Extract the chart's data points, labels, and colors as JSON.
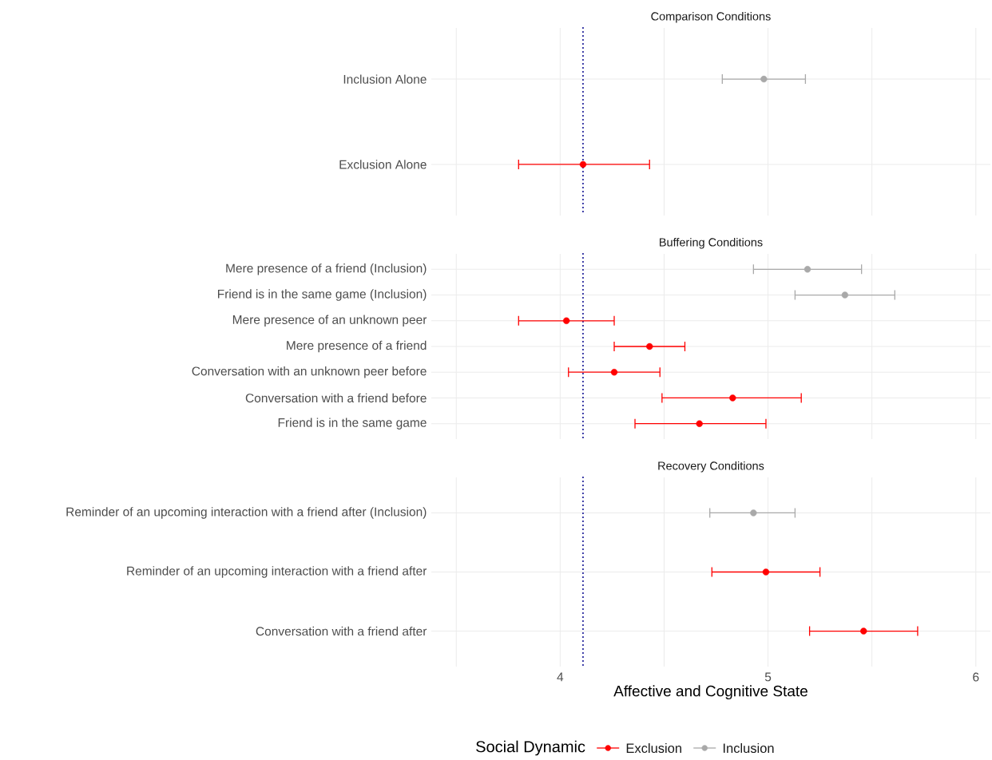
{
  "chart_data": [
    {
      "type": "scatter",
      "title": "Comparison Conditions",
      "orientation": "horizontal",
      "marker": "circle",
      "grid": true,
      "tick_labels": "y",
      "categories": [
        "Inclusion Alone",
        "Exclusion Alone"
      ],
      "xlim": [
        3.38,
        6.07
      ],
      "xticks": [
        {
          "value": 3.5,
          "label": null
        },
        {
          "value": 4,
          "label": null
        },
        {
          "value": 4.5,
          "label": null
        },
        {
          "value": 5,
          "label": null
        },
        {
          "value": 5.5,
          "label": null
        },
        {
          "value": 6,
          "label": null
        }
      ],
      "series": [
        {
          "color": "#ff0000",
          "values": [
            null,
            4.11
          ],
          "errors": [
            null,
            [
              3.8,
              4.43
            ]
          ]
        },
        {
          "color": "#a9a9a9",
          "values": [
            4.98,
            null
          ],
          "errors": [
            [
              4.78,
              5.18
            ],
            null
          ]
        }
      ],
      "ref_lines": [
        {
          "axis": "x",
          "value": 4.11,
          "color": "#00008b",
          "line_style": "dotted"
        }
      ]
    },
    {
      "type": "scatter",
      "title": "Buffering Conditions",
      "orientation": "horizontal",
      "marker": "circle",
      "grid": true,
      "tick_labels": "y",
      "categories": [
        "Mere presence of a friend (Inclusion)",
        "Friend is in the same game (Inclusion)",
        "Mere presence of an unknown peer",
        "Mere presence of a friend",
        "Conversation with an unknown peer before",
        "Conversation with a friend before",
        "Friend is in the same game"
      ],
      "xlim": [
        3.38,
        6.07
      ],
      "xticks": [
        {
          "value": 3.5,
          "label": null
        },
        {
          "value": 4,
          "label": null
        },
        {
          "value": 4.5,
          "label": null
        },
        {
          "value": 5,
          "label": null
        },
        {
          "value": 5.5,
          "label": null
        },
        {
          "value": 6,
          "label": null
        }
      ],
      "series": [
        {
          "color": "#ff0000",
          "values": [
            null,
            null,
            4.03,
            4.43,
            4.26,
            4.83,
            4.67
          ],
          "errors": [
            null,
            null,
            [
              3.8,
              4.26
            ],
            [
              4.26,
              4.6
            ],
            [
              4.04,
              4.48
            ],
            [
              4.49,
              5.16
            ],
            [
              4.36,
              4.99
            ]
          ]
        },
        {
          "color": "#a9a9a9",
          "values": [
            5.19,
            5.37,
            null,
            null,
            null,
            null,
            null
          ],
          "errors": [
            [
              4.93,
              5.45
            ],
            [
              5.13,
              5.61
            ],
            null,
            null,
            null,
            null,
            null
          ]
        }
      ],
      "ref_lines": [
        {
          "axis": "x",
          "value": 4.11,
          "color": "#00008b",
          "line_style": "dotted"
        }
      ]
    },
    {
      "type": "scatter",
      "title": "Recovery Conditions",
      "orientation": "horizontal",
      "marker": "circle",
      "grid": true,
      "xlabel": "Affective and Cognitive State",
      "legend": "bottom",
      "legend_title": "Social Dynamic",
      "categories": [
        "Reminder of an upcoming interaction with a friend after (Inclusion)",
        "Reminder of an upcoming interaction with a friend after",
        "Conversation with a friend after"
      ],
      "xlim": [
        3.38,
        6.07
      ],
      "xticks": [
        {
          "value": 3.5,
          "label": null
        },
        4,
        {
          "value": 4.5,
          "label": null
        },
        5,
        {
          "value": 5.5,
          "label": null
        },
        6
      ],
      "series": [
        {
          "name": "Exclusion",
          "color": "#ff0000",
          "values": [
            null,
            4.99,
            5.46
          ],
          "errors": [
            null,
            [
              4.73,
              5.25
            ],
            [
              5.2,
              5.72
            ]
          ]
        },
        {
          "name": "Inclusion",
          "color": "#a9a9a9",
          "values": [
            4.93,
            null,
            null
          ],
          "errors": [
            [
              4.72,
              5.13
            ],
            null,
            null
          ]
        }
      ],
      "ref_lines": [
        {
          "axis": "x",
          "value": 4.11,
          "color": "#00008b",
          "line_style": "dotted"
        }
      ]
    }
  ]
}
